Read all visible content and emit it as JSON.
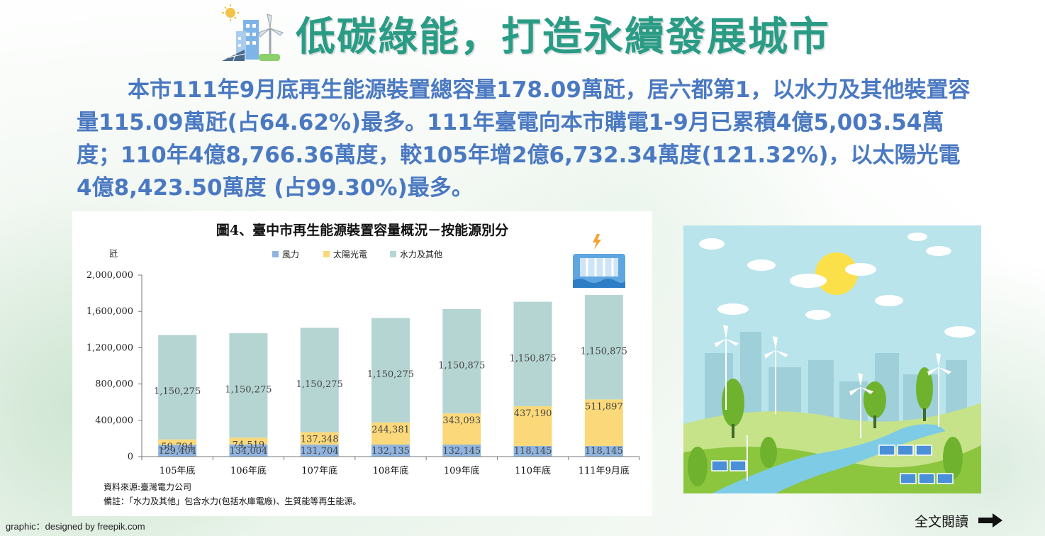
{
  "header": {
    "title": "低碳綠能，打造永續發展城市",
    "icon": "city-renewable-icon"
  },
  "intro": {
    "text": "本市111年9月底再生能源裝置總容量178.09萬瓩，居六都第1，以水力及其他裝置容量115.09萬瓩(占64.62%)最多。111年臺電向本市購電1-9月已累積4億5,003.54萬度；110年4億8,766.36萬度，較105年增2億6,732.34萬度(121.32%)，以太陽光電4億8,423.50萬度 (占99.30%)最多。"
  },
  "chart": {
    "source_note": "資料來源:臺灣電力公司",
    "remark_note": "備註：「水力及其他」包含水力(包括水庫電廠)、生質能等再生能源。",
    "icon": "hydro-dam-icon"
  },
  "chart_data": {
    "type": "bar",
    "stacked": true,
    "title": "圖4、臺中市再生能源裝置容量概況－按能源別分",
    "ylabel": "瓩",
    "xlabel": "",
    "categories": [
      "105年底",
      "106年底",
      "107年底",
      "108年底",
      "109年底",
      "110年底",
      "111年9月底"
    ],
    "ylim": [
      0,
      2000000
    ],
    "yticks": [
      0,
      400000,
      800000,
      1200000,
      1600000,
      2000000
    ],
    "ytick_labels": [
      "0",
      "400,000",
      "800,000",
      "1,200,000",
      "1,600,000",
      "2,000,000"
    ],
    "legend_position": "top",
    "grid": false,
    "series": [
      {
        "name": "風力",
        "color": "#8fb4df",
        "values": [
          129404,
          134004,
          131704,
          132135,
          132145,
          118145,
          118145
        ],
        "labels": [
          "129,404",
          "134,004",
          "131,704",
          "132,135",
          "132,145",
          "118,145",
          "118,145"
        ]
      },
      {
        "name": "太陽光電",
        "color": "#fbd97a",
        "values": [
          59794,
          74519,
          137348,
          244381,
          343093,
          437190,
          511897
        ],
        "labels": [
          "59,794",
          "74,519",
          "137,348",
          "244,381",
          "343,093",
          "437,190",
          "511,897"
        ]
      },
      {
        "name": "水力及其他",
        "color": "#b5d5d3",
        "values": [
          1150275,
          1150275,
          1150275,
          1150275,
          1150875,
          1150875,
          1150875
        ],
        "labels": [
          "1,150,275",
          "1,150,275",
          "1,150,275",
          "1,150,275",
          "1,150,875",
          "1,150,875",
          "1,150,875"
        ]
      }
    ]
  },
  "illustration": {
    "icon": "green-city-landscape-icon"
  },
  "footer": {
    "credit": "graphic：designed by freepik.com",
    "read_more_label": "全文閱讀",
    "arrow_icon": "right-arrow-icon"
  }
}
